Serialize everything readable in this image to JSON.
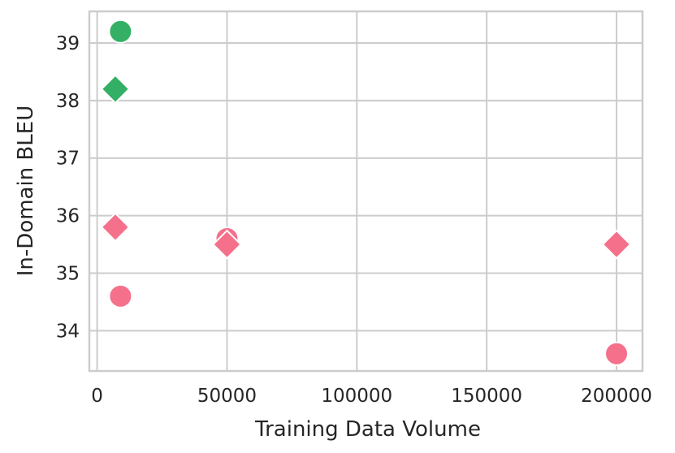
{
  "chart_data": {
    "type": "scatter",
    "xlabel": "Training Data Volume",
    "ylabel": "In-Domain BLEU",
    "xlim": [
      -3000,
      210000
    ],
    "ylim": [
      33.3,
      39.55
    ],
    "xticks": [
      0,
      50000,
      100000,
      150000,
      200000
    ],
    "xtick_labels": [
      "0",
      "50000",
      "100000",
      "150000",
      "200000"
    ],
    "yticks": [
      34,
      35,
      36,
      37,
      38,
      39
    ],
    "ytick_labels": [
      "34",
      "35",
      "36",
      "37",
      "38",
      "39"
    ],
    "grid": true,
    "series": [
      {
        "marker": "circle",
        "color": "#33b065",
        "points": [
          {
            "x": 9000,
            "y": 39.2
          }
        ]
      },
      {
        "marker": "diamond",
        "color": "#33b065",
        "points": [
          {
            "x": 7000,
            "y": 38.2
          }
        ]
      },
      {
        "marker": "circle",
        "color": "#f5708b",
        "points": [
          {
            "x": 9000,
            "y": 34.6
          },
          {
            "x": 50000,
            "y": 35.6
          },
          {
            "x": 200000,
            "y": 33.6
          }
        ]
      },
      {
        "marker": "diamond",
        "color": "#f5708b",
        "points": [
          {
            "x": 7000,
            "y": 35.8
          },
          {
            "x": 50000,
            "y": 35.5
          },
          {
            "x": 200000,
            "y": 35.5
          }
        ]
      }
    ]
  }
}
